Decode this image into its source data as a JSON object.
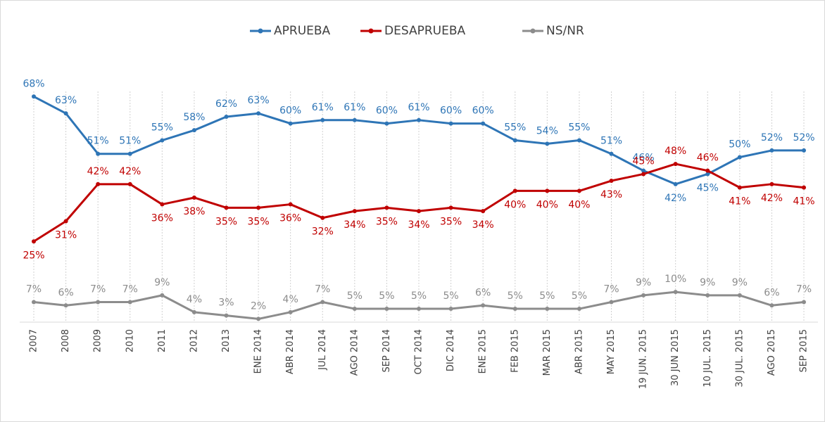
{
  "chart_data": {
    "type": "line",
    "categories": [
      "2007",
      "2008",
      "2009",
      "2010",
      "2011",
      "2012",
      "2013",
      "ENE 2014",
      "ABR 2014",
      "JUL 2014",
      "AGO 2014",
      "SEP 2014",
      "OCT 2014",
      "DIC 2014",
      "ENE 2015",
      "FEB 2015",
      "MAR 2015",
      "ABR 2015",
      "MAY 2015",
      "19 JUN. 2015",
      "30 JUN 2015",
      "10 JUL. 2015",
      "30 JUL. 2015",
      "AGO 2015",
      "SEP 2015"
    ],
    "series": [
      {
        "name": "APRUEBA",
        "color": "#2e75b6",
        "values": [
          68,
          63,
          51,
          51,
          55,
          58,
          62,
          63,
          60,
          61,
          61,
          60,
          61,
          60,
          60,
          55,
          54,
          55,
          51,
          46,
          42,
          45,
          50,
          52,
          52
        ],
        "value_labels": [
          "68%",
          "63%",
          "51%",
          "51%",
          "55%",
          "58%",
          "62%",
          "63%",
          "60%",
          "61%",
          "61%",
          "60%",
          "61%",
          "60%",
          "60%",
          "55%",
          "54%",
          "55%",
          "51%",
          "46%",
          "42%",
          "45%",
          "50%",
          "52%",
          "52%"
        ]
      },
      {
        "name": "DESAPRUEBA",
        "color": "#c00000",
        "values": [
          25,
          31,
          42,
          42,
          36,
          38,
          35,
          35,
          36,
          32,
          34,
          35,
          34,
          35,
          34,
          40,
          40,
          40,
          43,
          45,
          48,
          46,
          41,
          42,
          41
        ],
        "value_labels": [
          "25%",
          "31%",
          "42%",
          "42%",
          "36%",
          "38%",
          "35%",
          "35%",
          "36%",
          "32%",
          "34%",
          "35%",
          "34%",
          "35%",
          "34%",
          "40%",
          "40%",
          "40%",
          "43%",
          "45%",
          "48%",
          "46%",
          "41%",
          "42%",
          "41%"
        ]
      },
      {
        "name": "NS/NR",
        "color": "#8c8c8c",
        "values": [
          7,
          6,
          7,
          7,
          9,
          4,
          3,
          2,
          4,
          7,
          5,
          5,
          5,
          5,
          6,
          5,
          5,
          5,
          7,
          9,
          10,
          9,
          9,
          6,
          7
        ],
        "value_labels": [
          "7%",
          "6%",
          "7%",
          "7%",
          "9%",
          "4%",
          "3%",
          "2%",
          "4%",
          "7%",
          "5%",
          "5%",
          "5%",
          "5%",
          "6%",
          "5%",
          "5%",
          "5%",
          "7%",
          "9%",
          "10%",
          "9%",
          "9%",
          "6%",
          "7%"
        ]
      }
    ],
    "legend": "top",
    "grid": true
  }
}
